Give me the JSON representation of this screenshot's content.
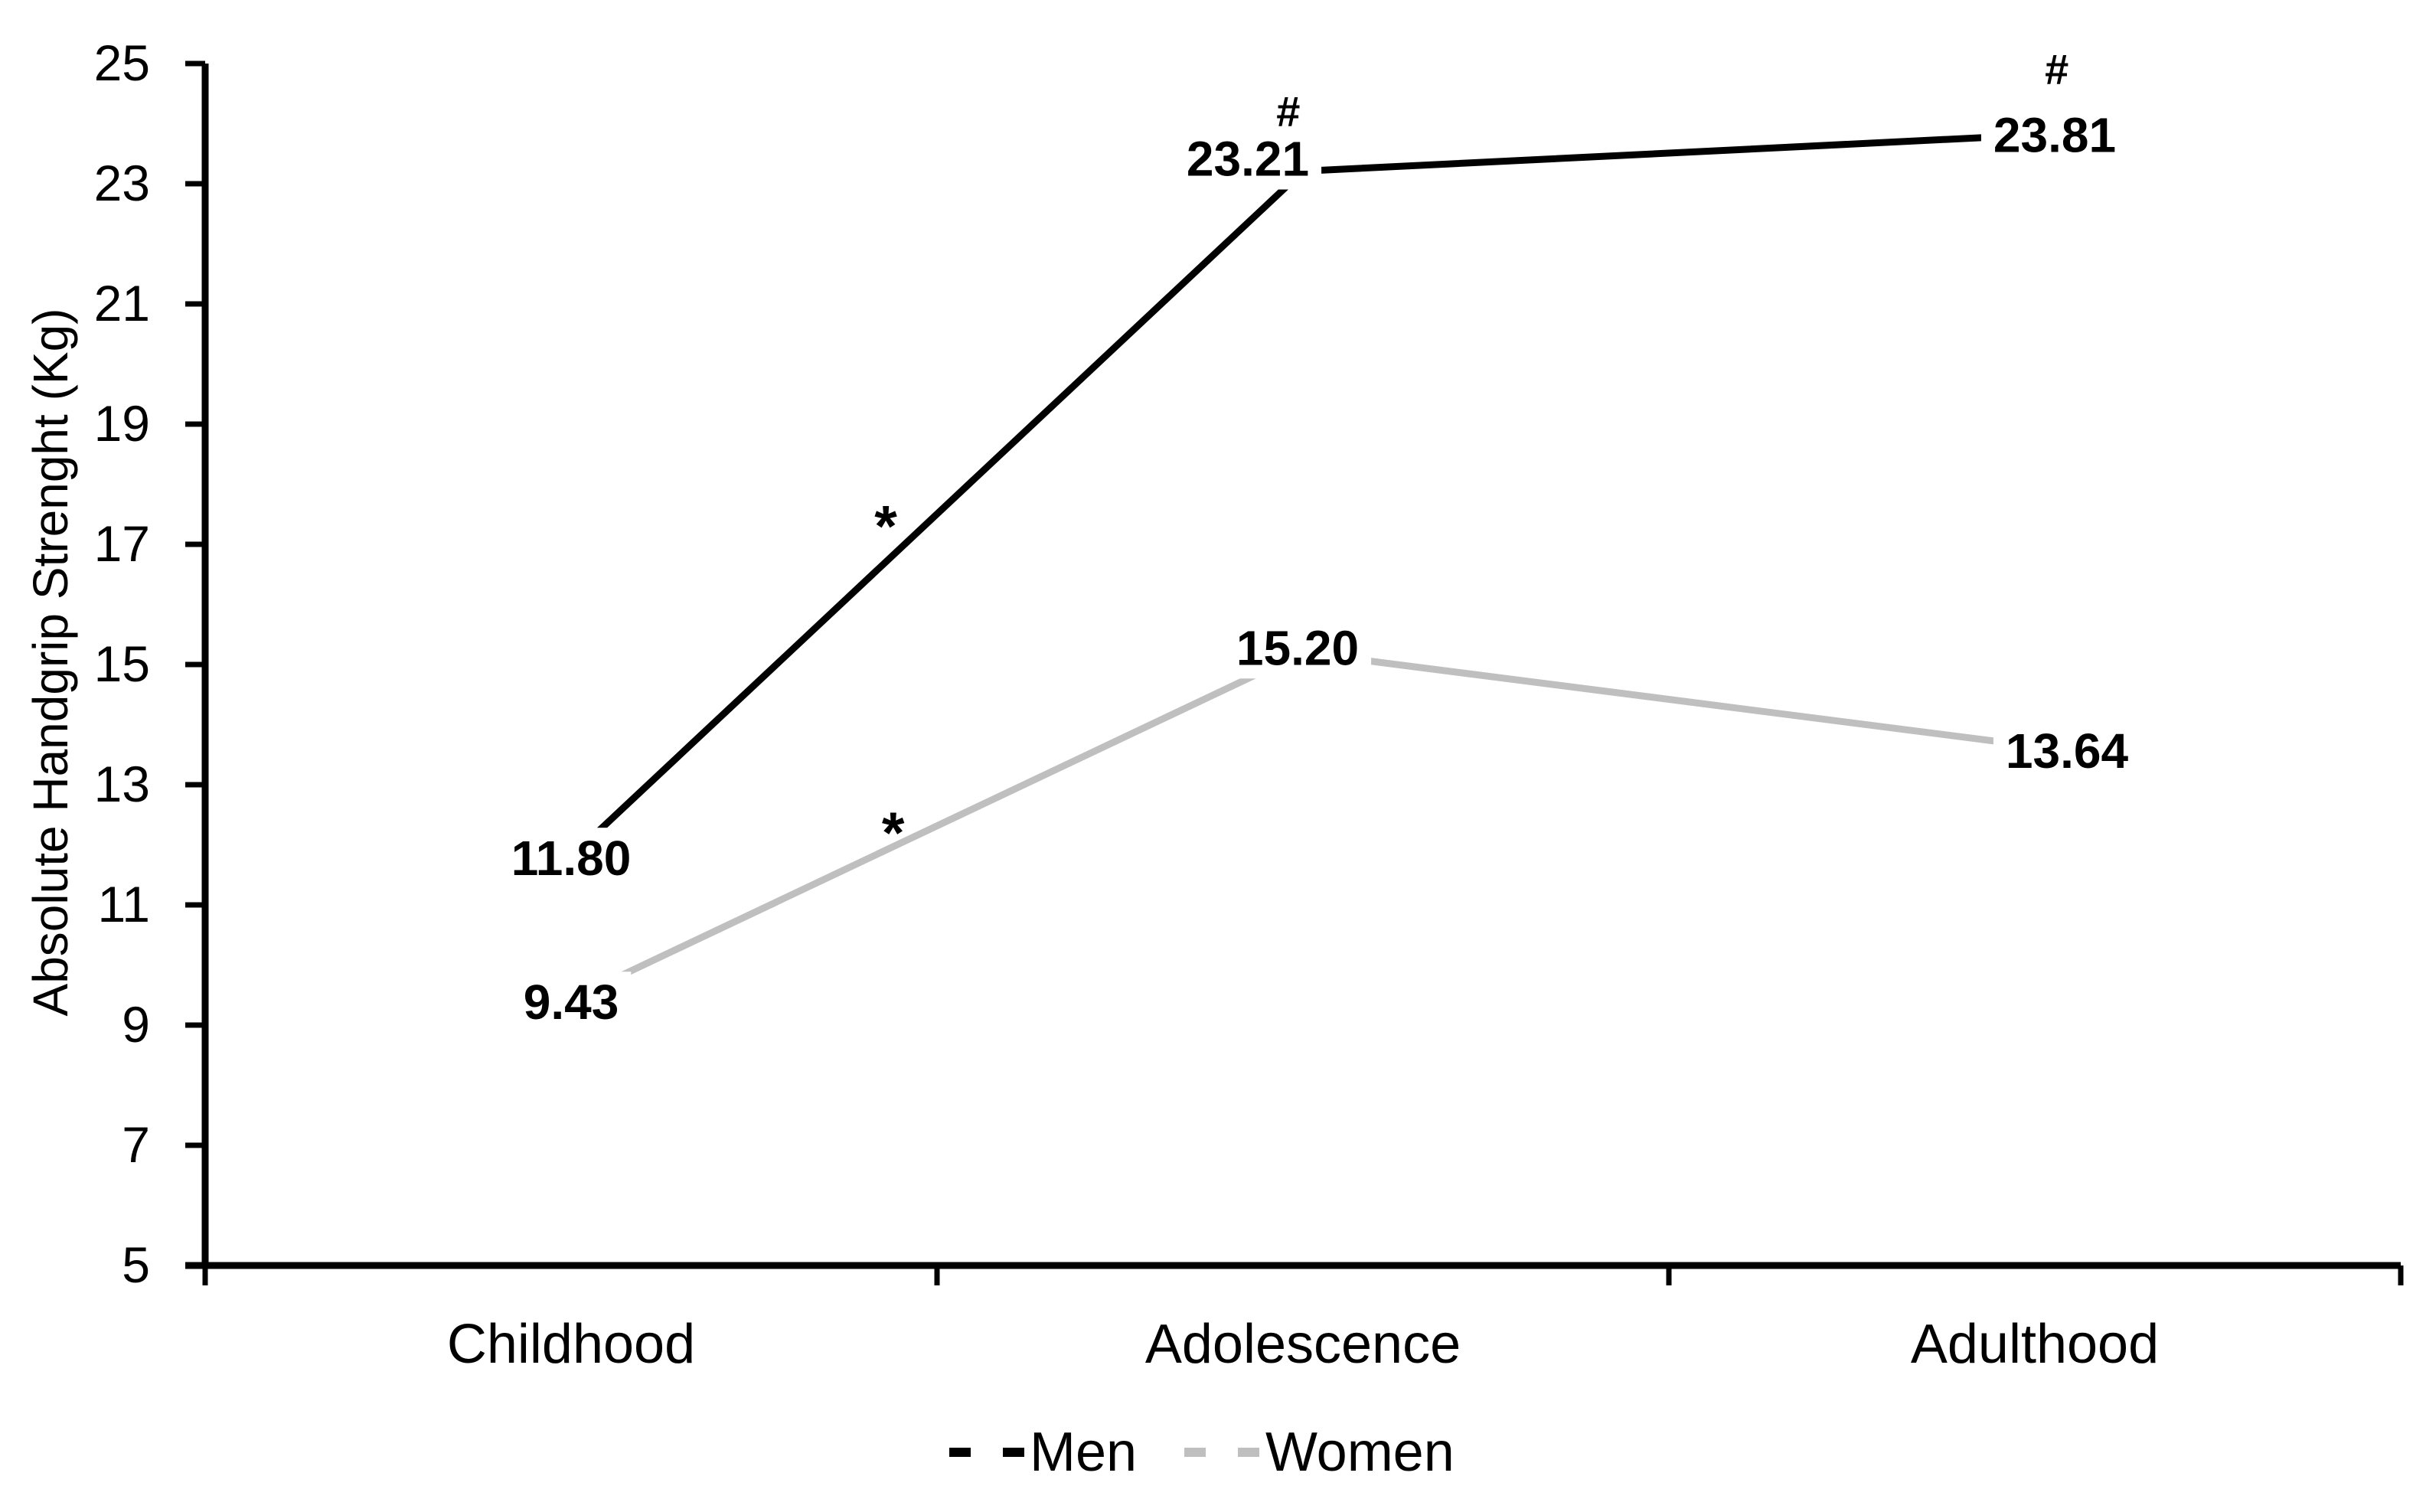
{
  "chart_data": {
    "type": "line",
    "title": "",
    "categories": [
      "Childhood",
      "Adolescence",
      "Adulthood"
    ],
    "series": [
      {
        "name": "Men",
        "values": [
          11.8,
          23.21,
          23.81
        ],
        "labels": [
          "11.80",
          "23.21",
          "23.81"
        ],
        "color": "#000000",
        "label_offsets": [
          [
            0,
            1
          ],
          [
            -72,
            -17
          ],
          [
            26,
            -1
          ]
        ]
      },
      {
        "name": "Women",
        "values": [
          9.43,
          15.2,
          13.64
        ],
        "labels": [
          "9.43",
          "15.20",
          "13.64"
        ],
        "color": "#bfbfbf",
        "label_offsets": [
          [
            0,
            3
          ],
          [
            -7,
            -7
          ],
          [
            42,
            5
          ]
        ]
      }
    ],
    "xlabel": "",
    "ylabel": "Absolute Handgrip Strenght (Kg)",
    "ylim": [
      5,
      25
    ],
    "yticks": [
      5,
      7,
      9,
      11,
      13,
      15,
      17,
      19,
      21,
      23,
      25
    ],
    "grid": false,
    "legend_position": "bottom-center",
    "annotations": [
      {
        "text": "*",
        "x_cat": 0.93,
        "y_val": 17.45
      },
      {
        "text": "*",
        "x_cat": 0.94,
        "y_val": 12.35
      },
      {
        "text": "#",
        "x_cat": 1.48,
        "y_val": 24.21
      },
      {
        "text": "#",
        "x_cat": 2.53,
        "y_val": 24.91
      }
    ],
    "axis_color": "#000000",
    "text_color": "#000000",
    "background": "#ffffff"
  }
}
